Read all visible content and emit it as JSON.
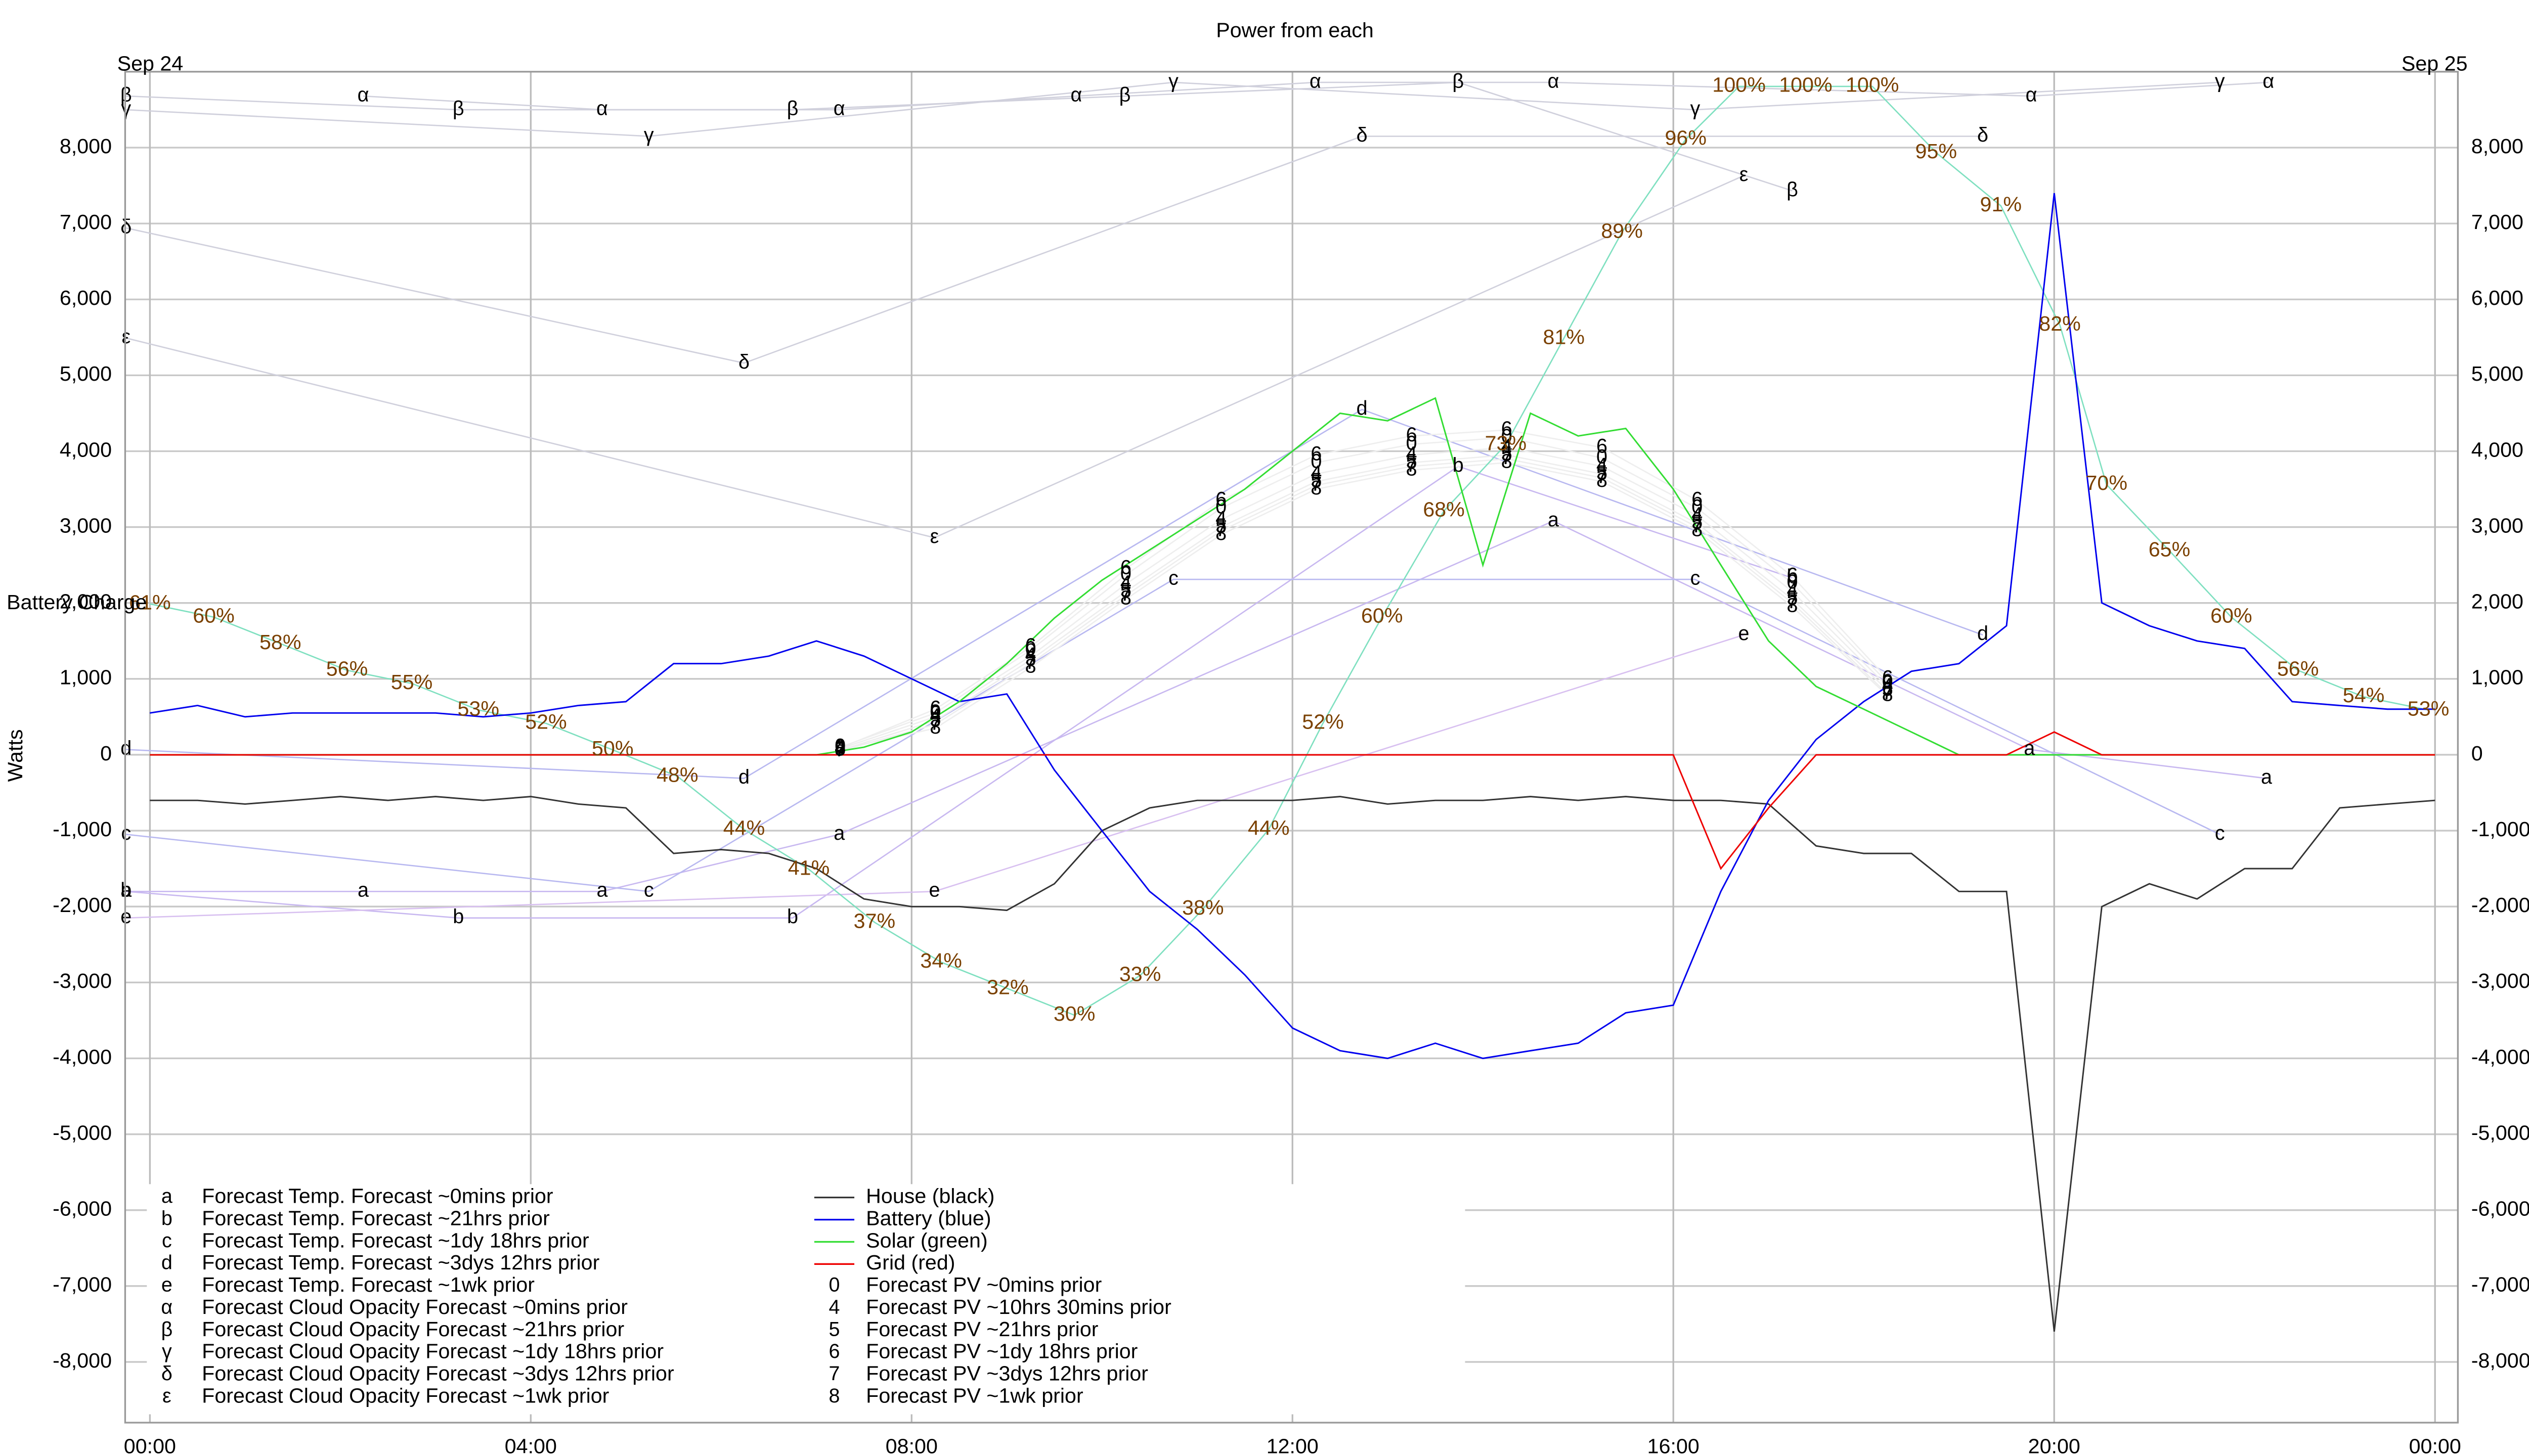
{
  "chart_data": {
    "type": "line",
    "title": "Power from each",
    "date_start": "Sep 24",
    "date_end": "Sep 25",
    "ylabel": "Watts",
    "y2label": "Battery Charge",
    "grid": true,
    "legend": "lower left",
    "xlim": [
      -0.26,
      24.24
    ],
    "xticks": [
      {
        "value": 0,
        "label": "00:00"
      },
      {
        "value": 4,
        "label": "04:00"
      },
      {
        "value": 8,
        "label": "08:00"
      },
      {
        "value": 12,
        "label": "12:00"
      },
      {
        "value": 16,
        "label": "16:00"
      },
      {
        "value": 20,
        "label": "20:00"
      },
      {
        "value": 24,
        "label": "00:00"
      }
    ],
    "ylim": [
      -8800,
      9000
    ],
    "yticks": [
      {
        "value": -8000,
        "label": "-8,000"
      },
      {
        "value": -7000,
        "label": "-7,000"
      },
      {
        "value": -6000,
        "label": "-6,000"
      },
      {
        "value": -5000,
        "label": "-5,000"
      },
      {
        "value": -4000,
        "label": "-4,000"
      },
      {
        "value": -3000,
        "label": "-3,000"
      },
      {
        "value": -2000,
        "label": "-2,000"
      },
      {
        "value": -1000,
        "label": "-1,000"
      },
      0,
      {
        "value": 1000,
        "label": "1,000"
      },
      {
        "value": 2000,
        "label": "2,000"
      },
      {
        "value": 3000,
        "label": "3,000"
      },
      {
        "value": 4000,
        "label": "4,000"
      },
      {
        "value": 5000,
        "label": "5,000"
      },
      {
        "value": 6000,
        "label": "6,000"
      },
      {
        "value": 7000,
        "label": "7,000"
      },
      {
        "value": 8000,
        "label": "8,000"
      }
    ],
    "y2lim": [
      -0.7,
      101.1
    ],
    "x": [
      0,
      0.5,
      1,
      1.5,
      2,
      2.5,
      3,
      3.5,
      4,
      4.5,
      5,
      5.5,
      6,
      6.5,
      7,
      7.5,
      8,
      8.5,
      9,
      9.5,
      10,
      10.5,
      11,
      11.5,
      12,
      12.5,
      13,
      13.5,
      14,
      14.5,
      15,
      15.5,
      16,
      16.5,
      17,
      17.5,
      18,
      18.5,
      19,
      19.5,
      20,
      20.5,
      21,
      21.5,
      22,
      22.5,
      23,
      23.5,
      24
    ],
    "series": [
      {
        "name": "House (black)",
        "color": "#333333",
        "values": [
          -600,
          -600,
          -650,
          -600,
          -550,
          -600,
          -550,
          -600,
          -550,
          -650,
          -700,
          -1300,
          -1250,
          -1300,
          -1500,
          -1900,
          -2000,
          -2000,
          -2050,
          -1700,
          -1000,
          -700,
          -600,
          -600,
          -600,
          -550,
          -650,
          -600,
          -600,
          -550,
          -600,
          -550,
          -600,
          -600,
          -650,
          -1200,
          -1300,
          -1300,
          -1800,
          -1800,
          -7600,
          -2000,
          -1700,
          -1900,
          -1500,
          -1500,
          -700,
          -650,
          -600
        ]
      },
      {
        "name": "Battery (blue)",
        "color": "#0000ee",
        "values": [
          550,
          650,
          500,
          550,
          550,
          550,
          550,
          500,
          550,
          650,
          700,
          1200,
          1200,
          1300,
          1500,
          1300,
          1000,
          700,
          800,
          -200,
          -1000,
          -1800,
          -2300,
          -2900,
          -3600,
          -3900,
          -4000,
          -3800,
          -4000,
          -3900,
          -3800,
          -3400,
          -3300,
          -1800,
          -600,
          200,
          700,
          1100,
          1200,
          1700,
          7400,
          2000,
          1700,
          1500,
          1400,
          700,
          650,
          600,
          600
        ]
      },
      {
        "name": "Solar (green)",
        "color": "#33dd33",
        "values": [
          0,
          0,
          0,
          0,
          0,
          0,
          0,
          0,
          0,
          0,
          0,
          0,
          0,
          0,
          0,
          100,
          300,
          700,
          1200,
          1800,
          2300,
          2700,
          3100,
          3500,
          4000,
          4500,
          4400,
          4700,
          2500,
          4500,
          4200,
          4300,
          3500,
          2500,
          1500,
          900,
          600,
          300,
          0,
          0,
          0,
          0,
          0,
          0,
          0,
          0,
          0,
          0,
          0
        ]
      },
      {
        "name": "Grid (red)",
        "color": "#ee0000",
        "values": [
          0,
          0,
          0,
          0,
          0,
          0,
          0,
          0,
          0,
          0,
          0,
          0,
          0,
          0,
          0,
          0,
          0,
          0,
          0,
          0,
          0,
          0,
          0,
          0,
          0,
          0,
          0,
          0,
          0,
          0,
          0,
          0,
          0,
          -1500,
          -700,
          0,
          0,
          0,
          0,
          0,
          300,
          0,
          0,
          0,
          0,
          0,
          0,
          0,
          0
        ]
      }
    ],
    "battery_charge": {
      "axis": "y2",
      "color": "#7fe0c0",
      "x": [
        0,
        0.67,
        1.37,
        2.07,
        2.75,
        3.45,
        4.16,
        4.86,
        5.54,
        6.24,
        6.92,
        7.61,
        8.31,
        9.01,
        9.71,
        10.4,
        11.06,
        11.75,
        12.32,
        12.94,
        13.59,
        14.24,
        14.85,
        15.46,
        16.13,
        16.69,
        17.39,
        18.09,
        18.76,
        19.44,
        20.06,
        20.55,
        21.21,
        21.86,
        22.56,
        23.25,
        23.93
      ],
      "values": [
        61,
        60,
        58,
        56,
        55,
        53,
        52,
        50,
        48,
        44,
        41,
        37,
        34,
        32,
        30,
        33,
        38,
        44,
        52,
        60,
        68,
        73,
        81,
        89,
        96,
        100,
        100,
        100,
        95,
        91,
        82,
        70,
        65,
        60,
        56,
        54,
        53
      ],
      "value_labels": [
        "61%",
        "60%",
        "58%",
        "56%",
        "55%",
        "53%",
        "52%",
        "50%",
        "48%",
        "44%",
        "41%",
        "37%",
        "34%",
        "32%",
        "30%",
        "33%",
        "38%",
        "44%",
        "52%",
        "60%",
        "68%",
        "73%",
        "81%",
        "89%",
        "96%",
        "100%",
        "100%",
        "100%",
        "95%",
        "91%",
        "82%",
        "70%",
        "65%",
        "60%",
        "56%",
        "54%",
        "53%"
      ]
    },
    "forecasts": [
      {
        "name": "Forecast Temp. Forecast ~0mins prior",
        "symbol": "a",
        "color": "#c8b8f0",
        "x": [
          -0.25,
          2.24,
          4.75,
          7.24,
          14.74,
          19.74,
          22.23
        ],
        "values": [
          -1800,
          -1800,
          -1800,
          -1050,
          3080,
          70,
          -310
        ]
      },
      {
        "name": "Forecast Temp. Forecast ~21hrs prior",
        "symbol": "b",
        "color": "#c8b8f0",
        "x": [
          -0.25,
          3.24,
          6.75,
          13.74,
          17.25
        ],
        "values": [
          -1800,
          -2150,
          -2150,
          3800,
          2330
        ]
      },
      {
        "name": "Forecast Temp. Forecast ~1dy 18hrs prior",
        "symbol": "c",
        "color": "#b8b8f0",
        "x": [
          -0.25,
          5.24,
          10.75,
          16.23,
          21.74
        ],
        "values": [
          -1050,
          -1800,
          2310,
          2310,
          -1050
        ]
      },
      {
        "name": "Forecast Temp. Forecast ~3dys 12hrs prior",
        "symbol": "d",
        "color": "#b8b8f0",
        "x": [
          -0.25,
          6.24,
          12.73,
          19.25
        ],
        "values": [
          70,
          -310,
          4550,
          1580
        ]
      },
      {
        "name": "Forecast Temp. Forecast ~1wk prior",
        "symbol": "e",
        "color": "#d8c0f0",
        "x": [
          -0.25,
          8.24,
          16.74
        ],
        "values": [
          -2150,
          -1800,
          1580
        ]
      },
      {
        "name": "Forecast Cloud Opacity Forecast ~0mins prior",
        "symbol": "α",
        "color": "#d0d0dc",
        "x": [
          2.24,
          4.75,
          7.24,
          9.73,
          12.24,
          14.74,
          19.76,
          22.25
        ],
        "values": [
          8680,
          8500,
          8500,
          8680,
          8860,
          8860,
          8680,
          8860
        ]
      },
      {
        "name": "Forecast Cloud Opacity Forecast ~21hrs prior",
        "symbol": "β",
        "color": "#d0d0dc",
        "x": [
          -0.25,
          3.24,
          6.75,
          10.24,
          13.74,
          17.25
        ],
        "values": [
          8680,
          8500,
          8500,
          8680,
          8860,
          7430
        ]
      },
      {
        "name": "Forecast Cloud Opacity Forecast ~1dy 18hrs prior",
        "symbol": "γ",
        "color": "#d0d0dc",
        "x": [
          -0.25,
          5.24,
          10.75,
          16.23,
          21.74
        ],
        "values": [
          8500,
          8150,
          8860,
          8500,
          8860
        ]
      },
      {
        "name": "Forecast Cloud Opacity Forecast ~3dys 12hrs prior",
        "symbol": "δ",
        "color": "#d0d0dc",
        "x": [
          -0.25,
          6.24,
          12.73,
          19.25
        ],
        "values": [
          6940,
          5160,
          8150,
          8150
        ]
      },
      {
        "name": "Forecast Cloud Opacity Forecast ~1wk prior",
        "symbol": "ε",
        "color": "#d0d0dc",
        "x": [
          -0.25,
          8.24,
          16.74
        ],
        "values": [
          5490,
          2860,
          7630
        ]
      },
      {
        "name": "Forecast PV ~0mins prior",
        "symbol": "0",
        "color": "#eeeeee",
        "x": [
          7.25,
          8.25,
          9.25,
          10.25,
          11.25,
          12.25,
          13.25,
          14.25,
          15.25,
          16.25,
          17.25,
          18.25
        ],
        "values": [
          100,
          550,
          1380,
          2370,
          3250,
          3850,
          4090,
          4180,
          3910,
          3250,
          2260,
          950
        ]
      },
      {
        "name": "Forecast PV ~10hrs 30mins prior",
        "symbol": "4",
        "color": "#eeeeee",
        "x": [
          7.25,
          8.25,
          9.25,
          10.25,
          11.25,
          12.25,
          13.25,
          14.25,
          15.25,
          16.25,
          17.25,
          18.25
        ],
        "values": [
          80,
          500,
          1300,
          2250,
          3100,
          3700,
          3950,
          4050,
          3800,
          3150,
          2150,
          900
        ]
      },
      {
        "name": "Forecast PV ~21hrs prior",
        "symbol": "5",
        "color": "#eeeeee",
        "x": [
          7.25,
          8.25,
          9.25,
          10.25,
          11.25,
          12.25,
          13.25,
          14.25,
          15.25,
          16.25,
          17.25,
          18.25
        ],
        "values": [
          60,
          450,
          1250,
          2150,
          3000,
          3600,
          3850,
          3950,
          3700,
          3050,
          2050,
          850
        ]
      },
      {
        "name": "Forecast PV ~1dy 18hrs prior",
        "symbol": "6",
        "color": "#eeeeee",
        "x": [
          7.25,
          8.25,
          9.25,
          10.25,
          11.25,
          12.25,
          13.25,
          14.25,
          15.25,
          16.25,
          17.25,
          18.25
        ],
        "values": [
          90,
          600,
          1420,
          2450,
          3350,
          3950,
          4200,
          4280,
          4050,
          3350,
          2350,
          1000
        ]
      },
      {
        "name": "Forecast PV ~3dys 12hrs prior",
        "symbol": "7",
        "color": "#eeeeee",
        "x": [
          7.25,
          8.25,
          9.25,
          10.25,
          11.25,
          12.25,
          13.25,
          14.25,
          15.25,
          16.25,
          17.25,
          18.25
        ],
        "values": [
          50,
          400,
          1200,
          2100,
          2950,
          3550,
          3800,
          3900,
          3650,
          3000,
          2000,
          800
        ]
      },
      {
        "name": "Forecast PV ~1wk prior",
        "symbol": "8",
        "color": "#eeeeee",
        "x": [
          7.25,
          8.25,
          9.25,
          10.25,
          11.25,
          12.25,
          13.25,
          14.25,
          15.25,
          16.25,
          17.25,
          18.25
        ],
        "values": [
          70,
          350,
          1150,
          2050,
          2900,
          3500,
          3750,
          3850,
          3600,
          2950,
          1950,
          780
        ]
      }
    ]
  }
}
